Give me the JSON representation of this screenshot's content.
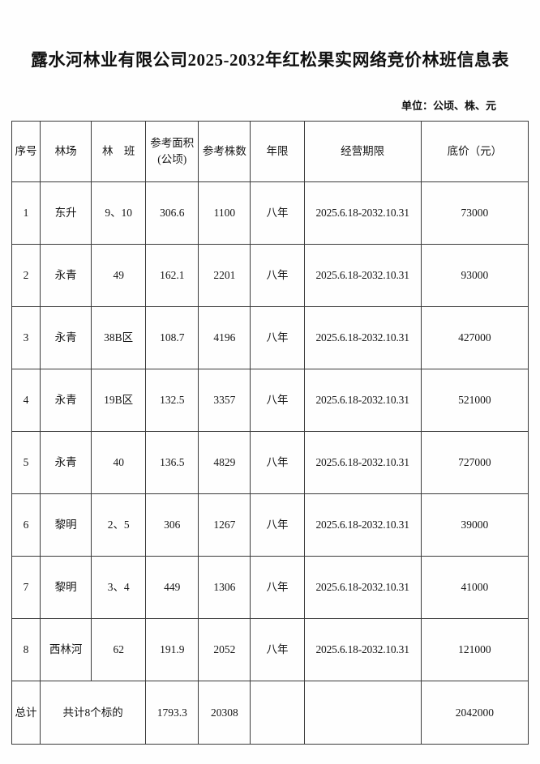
{
  "page": {
    "title": "露水河林业有限公司2025-2032年红松果实网络竞价林班信息表",
    "unit_note": "单位：公顷、株、元"
  },
  "table": {
    "headers": [
      "序号",
      "林场",
      "林　班",
      "参考面积(公顷)",
      "参考株数",
      "年限",
      "经营期限",
      "底价（元）"
    ],
    "rows": [
      [
        "1",
        "东升",
        "9、10",
        "306.6",
        "1100",
        "八年",
        "2025.6.18-2032.10.31",
        "73000"
      ],
      [
        "2",
        "永青",
        "49",
        "162.1",
        "2201",
        "八年",
        "2025.6.18-2032.10.31",
        "93000"
      ],
      [
        "3",
        "永青",
        "38B区",
        "108.7",
        "4196",
        "八年",
        "2025.6.18-2032.10.31",
        "427000"
      ],
      [
        "4",
        "永青",
        "19B区",
        "132.5",
        "3357",
        "八年",
        "2025.6.18-2032.10.31",
        "521000"
      ],
      [
        "5",
        "永青",
        "40",
        "136.5",
        "4829",
        "八年",
        "2025.6.18-2032.10.31",
        "727000"
      ],
      [
        "6",
        "黎明",
        "2、5",
        "306",
        "1267",
        "八年",
        "2025.6.18-2032.10.31",
        "39000"
      ],
      [
        "7",
        "黎明",
        "3、4",
        "449",
        "1306",
        "八年",
        "2025.6.18-2032.10.31",
        "41000"
      ],
      [
        "8",
        "西林河",
        "62",
        "191.9",
        "2052",
        "八年",
        "2025.6.18-2032.10.31",
        "121000"
      ]
    ],
    "total_row": {
      "label": "总计",
      "summary": "共计8个标的",
      "area": "1793.3",
      "count": "20308",
      "year": "",
      "period": "",
      "price": "2042000"
    }
  }
}
